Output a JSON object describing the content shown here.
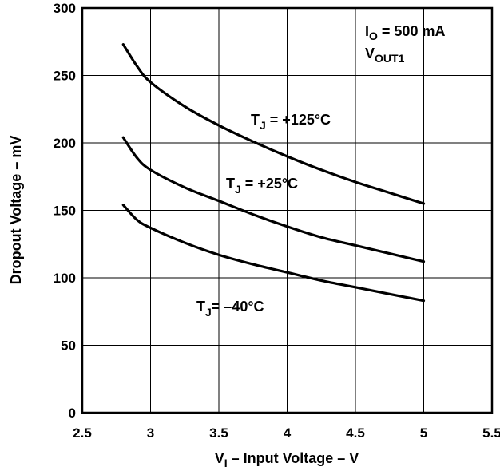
{
  "chart_data": {
    "type": "line",
    "xlabel": {
      "main": "V",
      "sub": "I",
      "rest": " – Input Voltage – V"
    },
    "ylabel": "Dropout Voltage – mV",
    "xlim": [
      2.5,
      5.5
    ],
    "ylim": [
      0,
      300
    ],
    "x_ticks": [
      {
        "value": 2.5,
        "label": "2.5"
      },
      {
        "value": 3,
        "label": "3"
      },
      {
        "value": 3.5,
        "label": "3.5"
      },
      {
        "value": 4,
        "label": "4"
      },
      {
        "value": 4.5,
        "label": "4.5"
      },
      {
        "value": 5,
        "label": "5"
      },
      {
        "value": 5.5,
        "label": "5.5"
      }
    ],
    "y_ticks": [
      {
        "value": 0,
        "label": "0"
      },
      {
        "value": 50,
        "label": "50"
      },
      {
        "value": 100,
        "label": "100"
      },
      {
        "value": 150,
        "label": "150"
      },
      {
        "value": 200,
        "label": "200"
      },
      {
        "value": 250,
        "label": "250"
      },
      {
        "value": 300,
        "label": "300"
      }
    ],
    "grid": true,
    "conditions": [
      {
        "main": "I",
        "sub": "O",
        "rest": " = 500 mA"
      },
      {
        "main": "V",
        "sub": "OUT1",
        "rest": ""
      }
    ],
    "series": [
      {
        "label": {
          "main": "T",
          "sub": "J",
          "rest": " = +125°C"
        },
        "x": [
          2.8,
          2.9,
          3.0,
          3.25,
          3.5,
          3.75,
          4.0,
          4.25,
          4.5,
          4.75,
          5.0
        ],
        "y": [
          273,
          257,
          245,
          227,
          213,
          201,
          190,
          180,
          171,
          163,
          155
        ]
      },
      {
        "label": {
          "main": "T",
          "sub": "J",
          "rest": " = +25°C"
        },
        "x": [
          2.8,
          2.9,
          3.0,
          3.25,
          3.5,
          3.75,
          4.0,
          4.25,
          4.5,
          4.75,
          5.0
        ],
        "y": [
          204,
          189,
          180,
          167,
          157,
          147,
          138,
          130,
          124,
          118,
          112
        ]
      },
      {
        "label": {
          "main": "T",
          "sub": "J",
          "rest": "= –40°C"
        },
        "x": [
          2.8,
          2.9,
          3.0,
          3.25,
          3.5,
          3.75,
          4.0,
          4.25,
          4.5,
          4.75,
          5.0
        ],
        "y": [
          154,
          143,
          137,
          126,
          117,
          110,
          104,
          98,
          93,
          88,
          83
        ]
      }
    ]
  }
}
